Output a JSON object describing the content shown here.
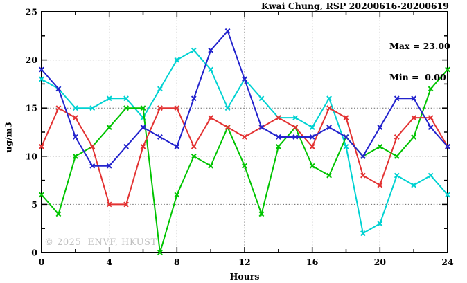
{
  "header": {
    "title": "Kwai Chung, RSP 20200616-20200619"
  },
  "annotations": {
    "max_label": "Max = 23.00",
    "min_label": "Min =  0.00"
  },
  "watermark": "© 2025  ENVF, HKUST",
  "chart_data": {
    "type": "line",
    "title": "Kwai Chung, RSP 20200616-20200619",
    "xlabel": "Hours",
    "ylabel": "ug/m3",
    "xlim": [
      0,
      24
    ],
    "ylim": [
      0,
      25
    ],
    "x_major_ticks": [
      0,
      4,
      8,
      12,
      16,
      20,
      24
    ],
    "x_minor_ticks": [
      2,
      6,
      10,
      14,
      18,
      22
    ],
    "y_major_ticks": [
      0,
      5,
      10,
      15,
      20,
      25
    ],
    "y_minor_ticks": [
      2.5,
      7.5,
      12.5,
      17.5,
      22.5
    ],
    "grid_x": [
      4,
      8,
      12,
      16,
      20
    ],
    "grid_y": [
      5,
      10,
      15,
      20
    ],
    "grid_on": true,
    "legend": "none",
    "marker": "x",
    "x": [
      0,
      1,
      2,
      3,
      4,
      5,
      6,
      7,
      8,
      9,
      10,
      11,
      12,
      13,
      14,
      15,
      16,
      17,
      18,
      19,
      20,
      21,
      22,
      23,
      24
    ],
    "series": [
      {
        "name": "cyan-line",
        "color": "#00d2d2",
        "values": [
          18,
          17,
          15,
          15,
          16,
          16,
          14,
          17,
          20,
          21,
          19,
          15,
          18,
          16,
          14,
          14,
          13,
          16,
          11,
          2,
          3,
          8,
          7,
          8,
          6
        ]
      },
      {
        "name": "green-line",
        "color": "#00c400",
        "values": [
          6,
          4,
          10,
          11,
          13,
          15,
          15,
          0,
          6,
          10,
          9,
          13,
          9,
          4,
          11,
          13,
          9,
          8,
          12,
          10,
          11,
          10,
          12,
          17,
          19
        ]
      },
      {
        "name": "red-line",
        "color": "#e33232",
        "values": [
          11,
          15,
          14,
          11,
          5,
          5,
          11,
          15,
          15,
          11,
          14,
          13,
          12,
          13,
          14,
          13,
          11,
          15,
          14,
          8,
          7,
          12,
          14,
          14,
          11
        ]
      },
      {
        "name": "blue-line",
        "color": "#2323cd",
        "values": [
          19,
          17,
          12,
          9,
          9,
          11,
          13,
          12,
          11,
          16,
          21,
          23,
          18,
          13,
          12,
          12,
          12,
          13,
          12,
          10,
          13,
          16,
          16,
          13,
          11
        ]
      }
    ],
    "stats": {
      "max": 23.0,
      "min": 0.0
    }
  },
  "plot_geometry_note": "x axis Hours 0-24, y axis ug/m3 0-25"
}
